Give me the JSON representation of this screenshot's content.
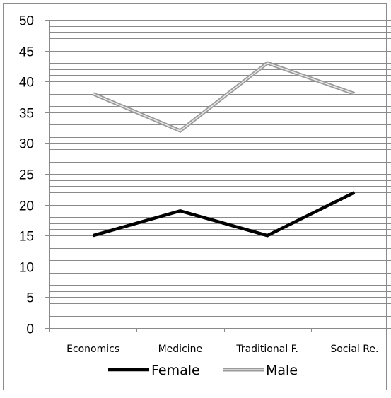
{
  "chart_data": {
    "type": "line",
    "title": "",
    "xlabel": "",
    "ylabel": "",
    "categories": [
      "Economics",
      "Medicine",
      "Traditional F.",
      "Social Re."
    ],
    "ylim": [
      0,
      50
    ],
    "y_ticks": [
      "0",
      "5",
      "10",
      "15",
      "20",
      "25",
      "30",
      "35",
      "40",
      "45",
      "50"
    ],
    "minor_grid_step": 1,
    "grid": true,
    "legend_position": "bottom",
    "series": [
      {
        "name": "Female",
        "values": [
          15,
          19,
          15,
          22
        ],
        "color": "#000000",
        "style": "solid"
      },
      {
        "name": "Male",
        "values": [
          38,
          32,
          43,
          38
        ],
        "color": "#9a9a9a",
        "style": "double"
      }
    ]
  }
}
